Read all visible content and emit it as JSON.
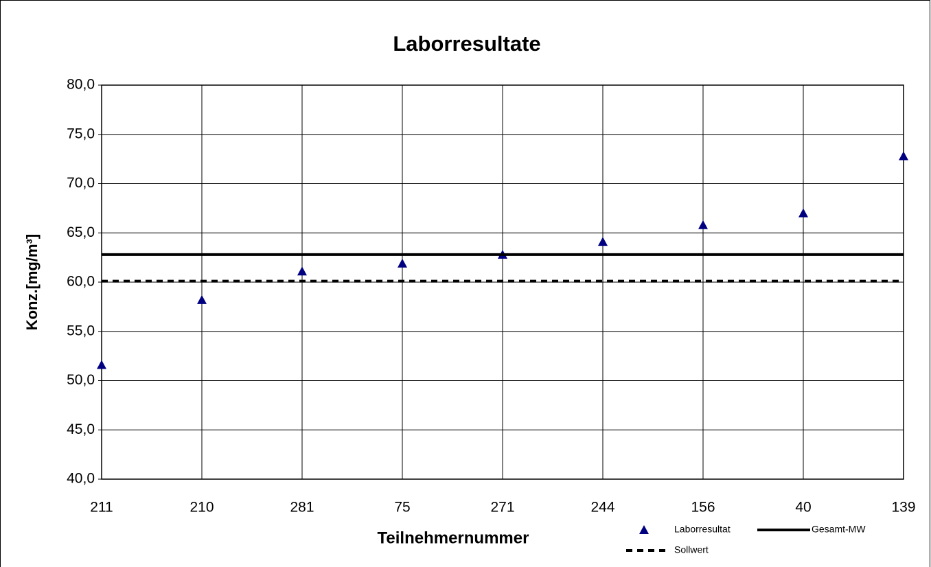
{
  "chart_data": {
    "type": "line",
    "title": "Laborresultate",
    "x_label": "Teilnehmernummer",
    "y_label": "Konz.[mg/m³]",
    "categories": [
      "211",
      "210",
      "281",
      "75",
      "271",
      "244",
      "156",
      "40",
      "139"
    ],
    "series": [
      {
        "name": "Laborresultat",
        "color": "#000080",
        "style": "marker",
        "values": [
          51.6,
          58.2,
          61.1,
          61.9,
          62.8,
          64.1,
          65.8,
          67.0,
          72.8
        ]
      },
      {
        "name": "Gesamt-MW",
        "color": "#000000",
        "style": "solid",
        "values": [
          62.8,
          62.8,
          62.8,
          62.8,
          62.8,
          62.8,
          62.8,
          62.8,
          62.8
        ]
      },
      {
        "name": "Sollwert",
        "color": "#000000",
        "style": "dashed",
        "values": [
          60.1,
          60.1,
          60.1,
          60.1,
          60.1,
          60.1,
          60.1,
          60.1,
          60.1
        ]
      }
    ],
    "ylim": [
      40,
      80
    ],
    "yticks": [
      {
        "value": 40,
        "label": "40,0"
      },
      {
        "value": 45,
        "label": "45,0"
      },
      {
        "value": 50,
        "label": "50,0"
      },
      {
        "value": 55,
        "label": "55,0"
      },
      {
        "value": 60,
        "label": "60,0"
      },
      {
        "value": 65,
        "label": "65,0"
      },
      {
        "value": 70,
        "label": "70,0"
      },
      {
        "value": 75,
        "label": "75,0"
      },
      {
        "value": 80,
        "label": "80,0"
      }
    ],
    "grid": true
  }
}
